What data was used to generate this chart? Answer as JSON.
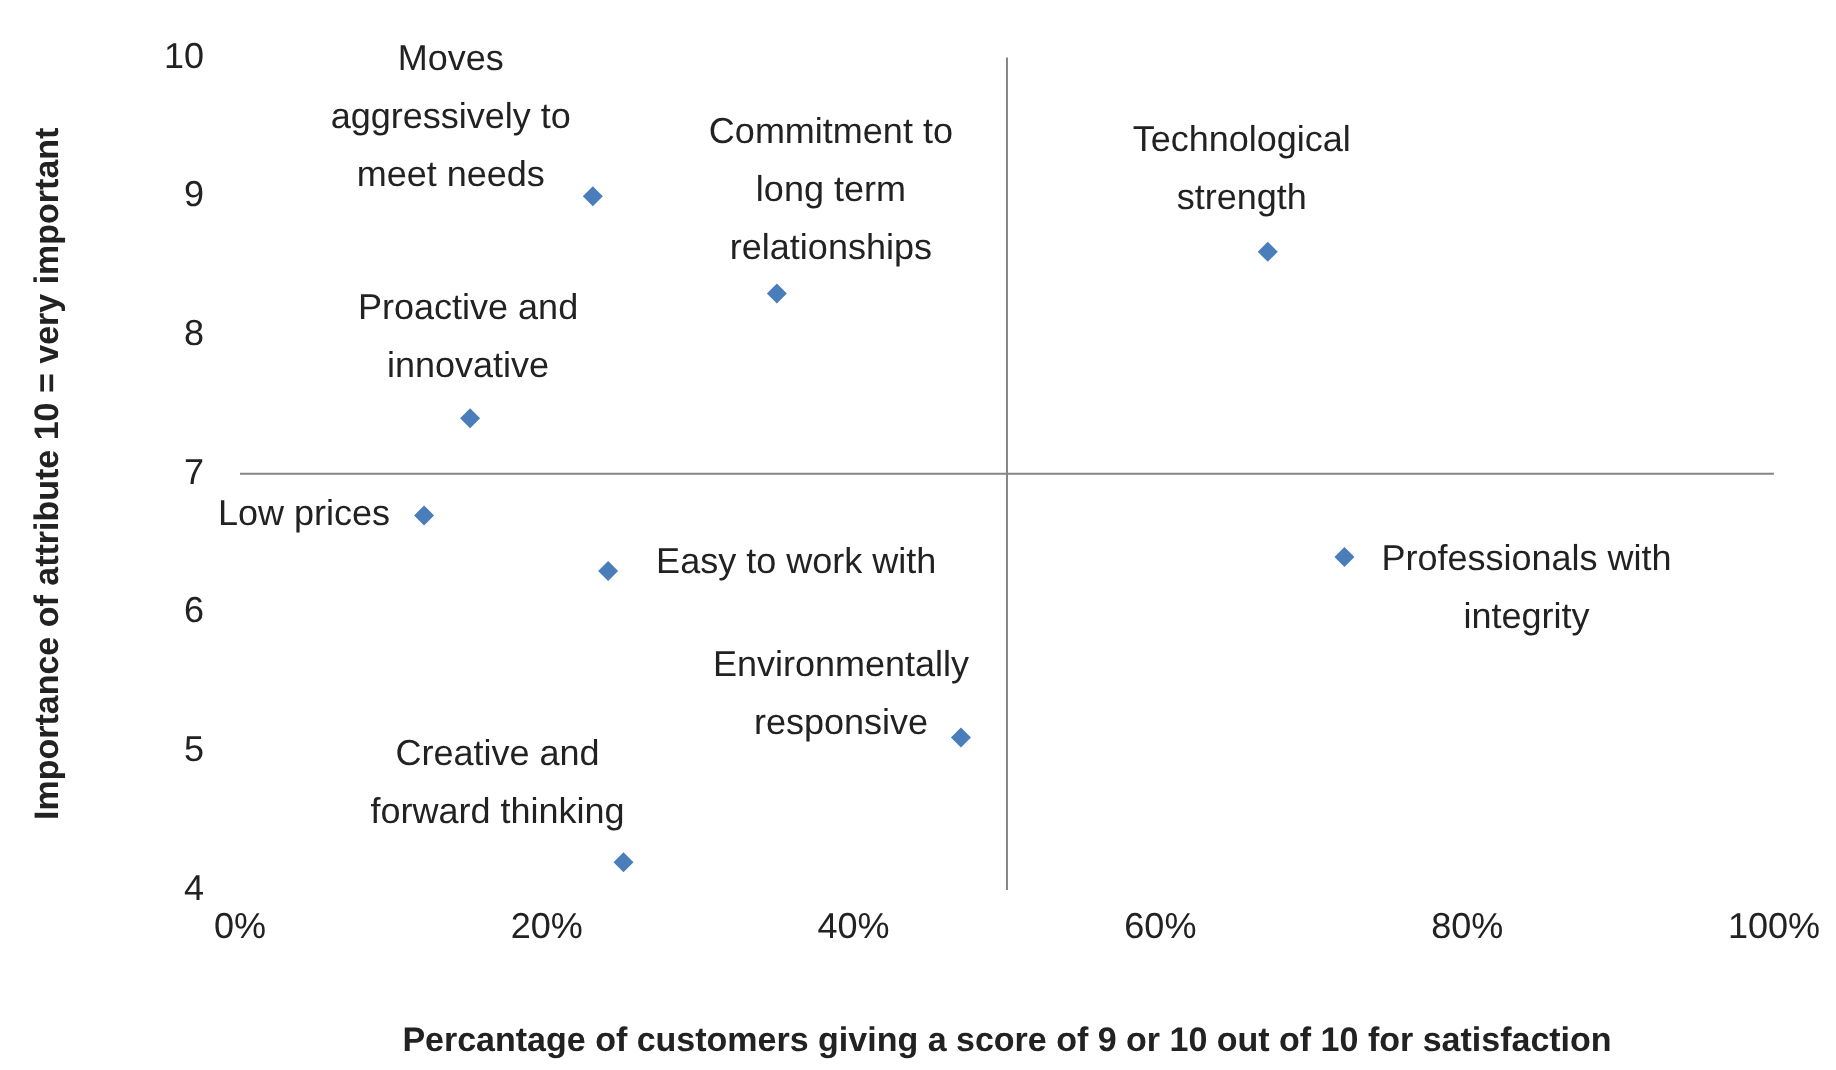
{
  "chart_data": {
    "type": "scatter",
    "xlabel": "Percantage of customers giving a score of 9 or 10 out of 10 for satisfaction",
    "ylabel": "Importance of attribute 10 = very important",
    "x": [
      23,
      35,
      67,
      15,
      12,
      24,
      72,
      47,
      25
    ],
    "series": [
      {
        "color": "#4a7ebb",
        "values": [
          9,
          8.3,
          8.6,
          7.4,
          6.7,
          6.3,
          6.4,
          5.1,
          4.2
        ]
      }
    ],
    "xlim": [
      0,
      100
    ],
    "ylim": [
      4,
      10
    ],
    "xticks": [
      {
        "value": 0,
        "label": "0%"
      },
      {
        "value": 20,
        "label": "20%"
      },
      {
        "value": 40,
        "label": "40%"
      },
      {
        "value": 60,
        "label": "60%"
      },
      {
        "value": 80,
        "label": "80%"
      },
      {
        "value": 100,
        "label": "100%"
      }
    ],
    "yticks": [
      4,
      5,
      6,
      7,
      8,
      9,
      10
    ],
    "ref_lines": [
      {
        "axis": "x",
        "value": 50,
        "color": "#868686"
      },
      {
        "axis": "y",
        "value": 7,
        "color": "#868686"
      }
    ],
    "annotations": [
      {
        "text": "Moves aggressively to meet needs",
        "x": 23,
        "y": 9
      },
      {
        "text": "Commitment to long term relationships",
        "x": 35,
        "y": 8.3
      },
      {
        "text": "Technological strength",
        "x": 67,
        "y": 8.6
      },
      {
        "text": "Proactive and innovative",
        "x": 15,
        "y": 7.4
      },
      {
        "text": "Low prices",
        "x": 12,
        "y": 6.7
      },
      {
        "text": "Easy to work with",
        "x": 24,
        "y": 6.3
      },
      {
        "text": "Professionals with integrity",
        "x": 72,
        "y": 6.4
      },
      {
        "text": "Environmentally responsive",
        "x": 47,
        "y": 5.1
      },
      {
        "text": "Creative and forward thinking",
        "x": 25,
        "y": 4.2
      }
    ],
    "grid": false,
    "legend": false,
    "marker": "diamond"
  }
}
